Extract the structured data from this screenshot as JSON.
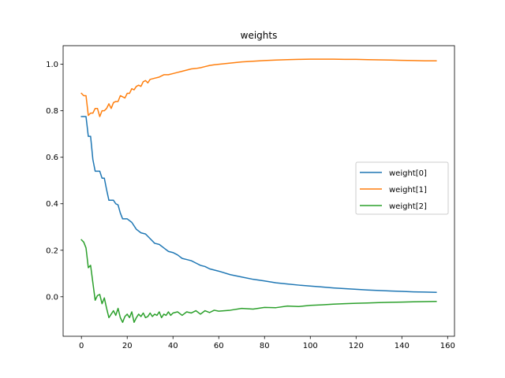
{
  "chart_data": {
    "type": "line",
    "title": "weights",
    "xlabel": "",
    "ylabel": "",
    "xlim": [
      -8,
      163
    ],
    "ylim": [
      -0.17,
      1.08
    ],
    "xticks": [
      0,
      20,
      40,
      60,
      80,
      100,
      120,
      140,
      160
    ],
    "xtick_labels": [
      "0",
      "20",
      "40",
      "60",
      "80",
      "100",
      "120",
      "140",
      "160"
    ],
    "yticks": [
      0.0,
      0.2,
      0.4,
      0.6,
      0.8,
      1.0
    ],
    "ytick_labels": [
      "0.0",
      "0.2",
      "0.4",
      "0.6",
      "0.8",
      "1.0"
    ],
    "grid": false,
    "legend_position": "center-right",
    "series": [
      {
        "name": "weight[0]",
        "color": "#1f77b4",
        "x": [
          0,
          2,
          3,
          4,
          5,
          6,
          7,
          8,
          9,
          10,
          11,
          12,
          13,
          14,
          15,
          16,
          17,
          18,
          19,
          20,
          22,
          24,
          26,
          28,
          30,
          32,
          34,
          36,
          38,
          40,
          42,
          44,
          46,
          48,
          50,
          52,
          54,
          56,
          58,
          60,
          65,
          70,
          75,
          80,
          85,
          90,
          95,
          100,
          105,
          110,
          115,
          120,
          125,
          130,
          135,
          140,
          145,
          150,
          155
        ],
        "values": [
          0.775,
          0.775,
          0.69,
          0.69,
          0.59,
          0.54,
          0.54,
          0.54,
          0.51,
          0.51,
          0.46,
          0.415,
          0.415,
          0.415,
          0.4,
          0.395,
          0.36,
          0.335,
          0.335,
          0.335,
          0.32,
          0.29,
          0.275,
          0.27,
          0.25,
          0.23,
          0.225,
          0.21,
          0.195,
          0.19,
          0.18,
          0.165,
          0.16,
          0.155,
          0.145,
          0.135,
          0.13,
          0.12,
          0.115,
          0.11,
          0.095,
          0.085,
          0.075,
          0.068,
          0.06,
          0.055,
          0.05,
          0.046,
          0.042,
          0.038,
          0.035,
          0.032,
          0.029,
          0.027,
          0.025,
          0.023,
          0.021,
          0.02,
          0.019
        ]
      },
      {
        "name": "weight[1]",
        "color": "#ff7f0e",
        "x": [
          0,
          1,
          2,
          3,
          4,
          5,
          6,
          7,
          8,
          9,
          10,
          11,
          12,
          13,
          14,
          15,
          16,
          17,
          18,
          19,
          20,
          21,
          22,
          23,
          24,
          25,
          26,
          27,
          28,
          29,
          30,
          32,
          34,
          36,
          38,
          40,
          42,
          44,
          46,
          48,
          50,
          52,
          54,
          56,
          58,
          60,
          65,
          70,
          75,
          80,
          85,
          90,
          95,
          100,
          105,
          110,
          115,
          120,
          125,
          130,
          135,
          140,
          145,
          150,
          155
        ],
        "values": [
          0.875,
          0.865,
          0.865,
          0.78,
          0.79,
          0.79,
          0.81,
          0.81,
          0.775,
          0.8,
          0.8,
          0.81,
          0.83,
          0.81,
          0.835,
          0.84,
          0.84,
          0.865,
          0.86,
          0.855,
          0.875,
          0.875,
          0.895,
          0.89,
          0.905,
          0.91,
          0.905,
          0.925,
          0.93,
          0.92,
          0.935,
          0.94,
          0.945,
          0.955,
          0.955,
          0.96,
          0.965,
          0.97,
          0.975,
          0.98,
          0.982,
          0.985,
          0.99,
          0.995,
          0.998,
          1.0,
          1.005,
          1.01,
          1.013,
          1.016,
          1.018,
          1.02,
          1.021,
          1.022,
          1.022,
          1.022,
          1.021,
          1.021,
          1.02,
          1.019,
          1.018,
          1.017,
          1.016,
          1.015,
          1.015
        ]
      },
      {
        "name": "weight[2]",
        "color": "#2ca02c",
        "x": [
          0,
          1,
          2,
          3,
          4,
          5,
          6,
          7,
          8,
          9,
          10,
          11,
          12,
          13,
          14,
          15,
          16,
          17,
          18,
          19,
          20,
          21,
          22,
          23,
          24,
          25,
          26,
          27,
          28,
          29,
          30,
          31,
          32,
          33,
          34,
          35,
          36,
          37,
          38,
          39,
          40,
          42,
          44,
          46,
          48,
          50,
          52,
          54,
          56,
          58,
          60,
          65,
          70,
          75,
          80,
          85,
          90,
          95,
          100,
          105,
          110,
          115,
          120,
          125,
          130,
          135,
          140,
          145,
          150,
          155
        ],
        "values": [
          0.245,
          0.235,
          0.21,
          0.125,
          0.135,
          0.06,
          -0.015,
          0.005,
          0.01,
          -0.03,
          -0.005,
          -0.05,
          -0.09,
          -0.075,
          -0.06,
          -0.08,
          -0.05,
          -0.09,
          -0.11,
          -0.085,
          -0.075,
          -0.09,
          -0.065,
          -0.11,
          -0.09,
          -0.075,
          -0.085,
          -0.07,
          -0.09,
          -0.085,
          -0.07,
          -0.085,
          -0.075,
          -0.08,
          -0.065,
          -0.09,
          -0.075,
          -0.08,
          -0.065,
          -0.08,
          -0.07,
          -0.065,
          -0.08,
          -0.065,
          -0.07,
          -0.06,
          -0.075,
          -0.06,
          -0.068,
          -0.058,
          -0.062,
          -0.058,
          -0.05,
          -0.053,
          -0.046,
          -0.047,
          -0.04,
          -0.042,
          -0.037,
          -0.035,
          -0.032,
          -0.03,
          -0.028,
          -0.027,
          -0.025,
          -0.024,
          -0.023,
          -0.022,
          -0.021,
          -0.02
        ]
      }
    ]
  }
}
